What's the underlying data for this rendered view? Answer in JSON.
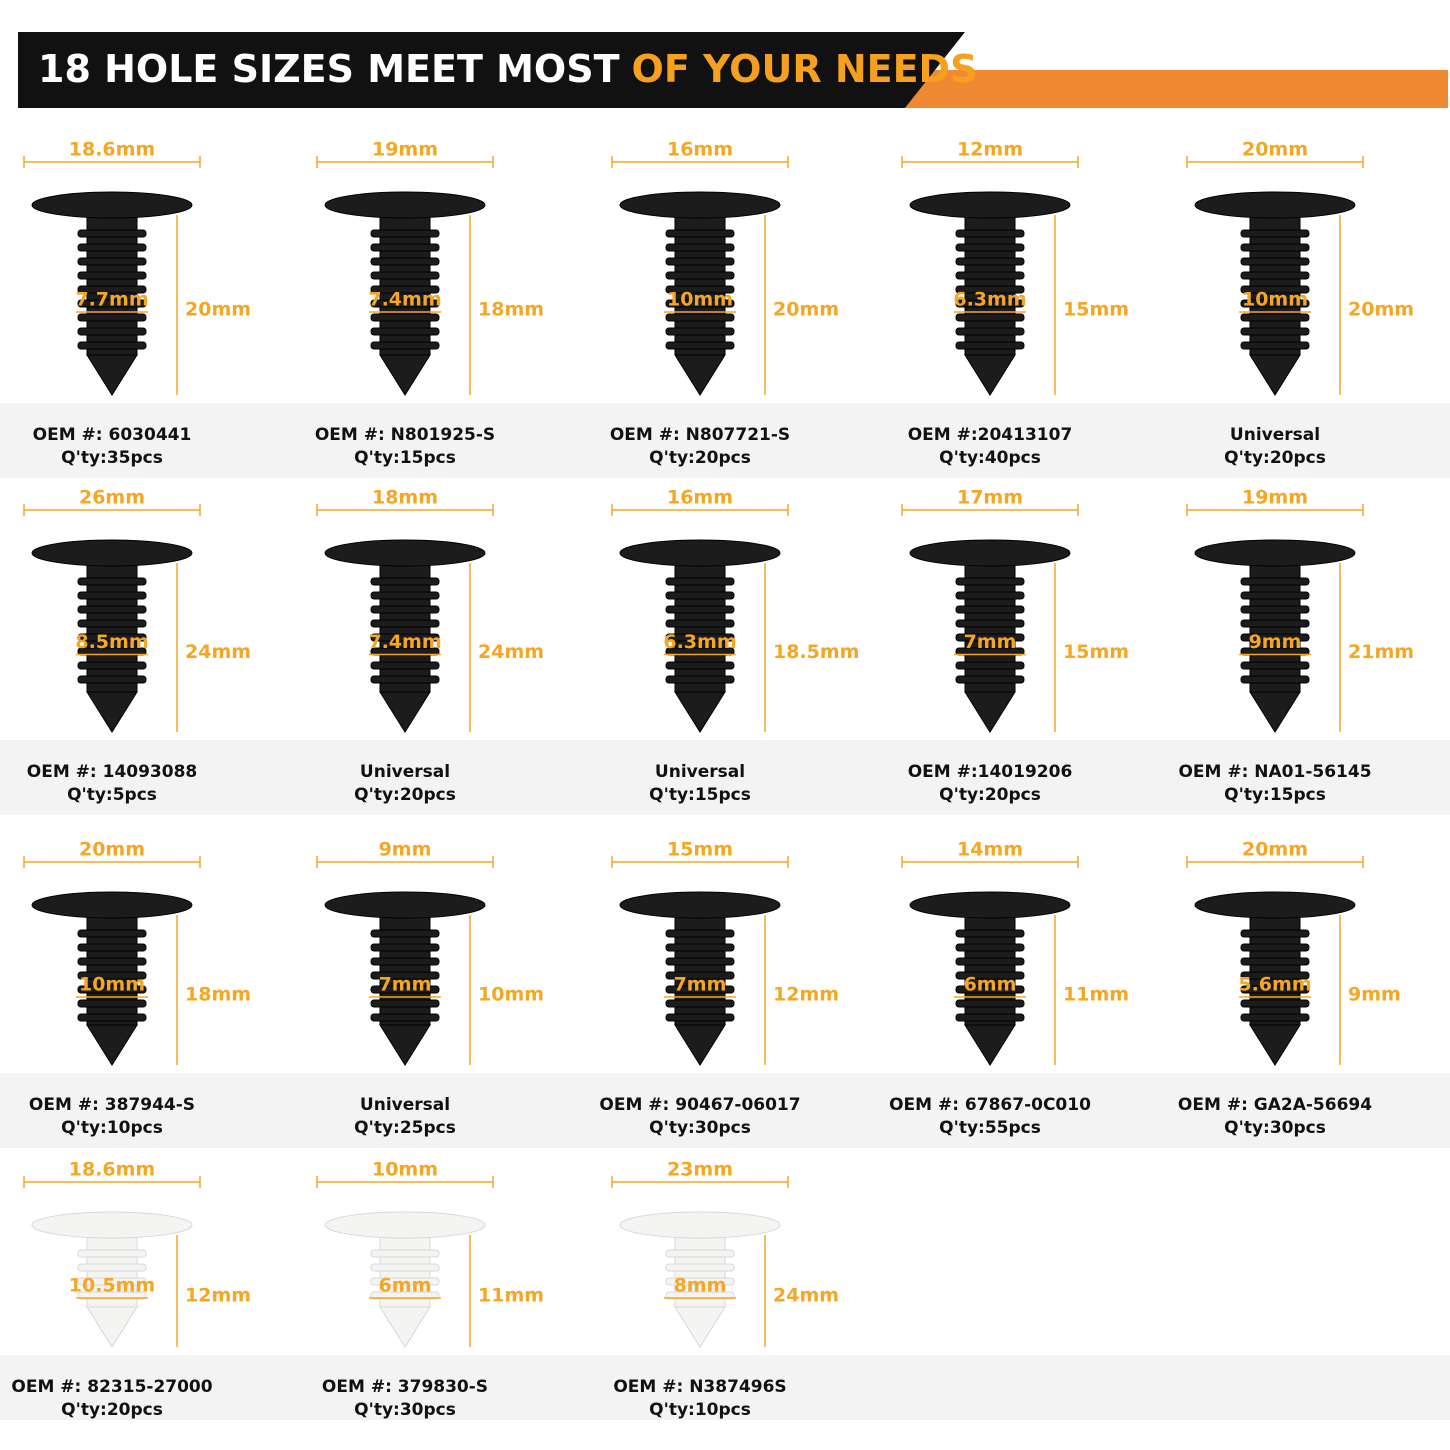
{
  "header": {
    "title_white": "18 HOLE SIZES MEET MOST",
    "title_orange": "OF YOUR NEEDS"
  },
  "items": [
    {
      "top": "18.6mm",
      "hole": "7.7mm",
      "height": "20mm",
      "oem": "OEM #: 6030441",
      "qty": "Q'ty:35pcs",
      "color": "black"
    },
    {
      "top": "19mm",
      "hole": "7.4mm",
      "height": "18mm",
      "oem": "OEM #: N801925-S",
      "qty": "Q'ty:15pcs",
      "color": "black"
    },
    {
      "top": "16mm",
      "hole": "10mm",
      "height": "20mm",
      "oem": "OEM #: N807721-S",
      "qty": "Q'ty:20pcs",
      "color": "black"
    },
    {
      "top": "12mm",
      "hole": "6.3mm",
      "height": "15mm",
      "oem": "OEM #:20413107",
      "qty": "Q'ty:40pcs",
      "color": "black"
    },
    {
      "top": "20mm",
      "hole": "10mm",
      "height": "20mm",
      "oem": "Universal",
      "qty": "Q'ty:20pcs",
      "color": "black"
    },
    {
      "top": "26mm",
      "hole": "8.5mm",
      "height": "24mm",
      "oem": "OEM #: 14093088",
      "qty": "Q'ty:5pcs",
      "color": "black"
    },
    {
      "top": "18mm",
      "hole": "7.4mm",
      "height": "24mm",
      "oem": "Universal",
      "qty": "Q'ty:20pcs",
      "color": "black"
    },
    {
      "top": "16mm",
      "hole": "6.3mm",
      "height": "18.5mm",
      "oem": "Universal",
      "qty": "Q'ty:15pcs",
      "color": "black"
    },
    {
      "top": "17mm",
      "hole": "7mm",
      "height": "15mm",
      "oem": "OEM #:14019206",
      "qty": "Q'ty:20pcs",
      "color": "black"
    },
    {
      "top": "19mm",
      "hole": "9mm",
      "height": "21mm",
      "oem": "OEM #: NA01-56145",
      "qty": "Q'ty:15pcs",
      "color": "black"
    },
    {
      "top": "20mm",
      "hole": "10mm",
      "height": "18mm",
      "oem": "OEM #: 387944-S",
      "qty": "Q'ty:10pcs",
      "color": "black"
    },
    {
      "top": "9mm",
      "hole": "7mm",
      "height": "10mm",
      "oem": "Universal",
      "qty": "Q'ty:25pcs",
      "color": "black"
    },
    {
      "top": "15mm",
      "hole": "7mm",
      "height": "12mm",
      "oem": "OEM #: 90467-06017",
      "qty": "Q'ty:30pcs",
      "color": "black"
    },
    {
      "top": "14mm",
      "hole": "6mm",
      "height": "11mm",
      "oem": "OEM #: 67867-0C010",
      "qty": "Q'ty:55pcs",
      "color": "black"
    },
    {
      "top": "20mm",
      "hole": "5.6mm",
      "height": "9mm",
      "oem": "OEM #: GA2A-56694",
      "qty": "Q'ty:30pcs",
      "color": "black"
    },
    {
      "top": "18.6mm",
      "hole": "10.5mm",
      "height": "12mm",
      "oem": "OEM #: 82315-27000",
      "qty": "Q'ty:20pcs",
      "color": "white"
    },
    {
      "top": "10mm",
      "hole": "6mm",
      "height": "11mm",
      "oem": "OEM #: 379830-S",
      "qty": "Q'ty:30pcs",
      "color": "white"
    },
    {
      "top": "23mm",
      "hole": "8mm",
      "height": "24mm",
      "oem": "OEM #: N387496S",
      "qty": "Q'ty:10pcs",
      "color": "white"
    }
  ]
}
